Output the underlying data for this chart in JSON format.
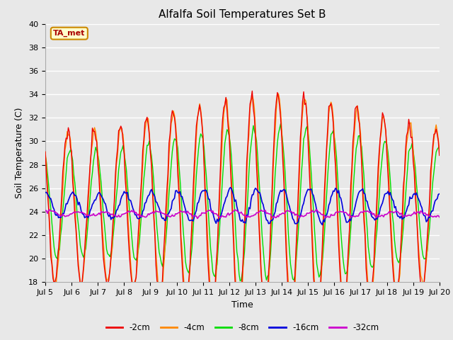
{
  "title": "Alfalfa Soil Temperatures Set B",
  "xlabel": "Time",
  "ylabel": "Soil Temperature (C)",
  "ylim": [
    18,
    40
  ],
  "xlim_days": [
    5,
    20
  ],
  "annotation": "TA_met",
  "line_colors": {
    "-2cm": "#ee0000",
    "-4cm": "#ff8800",
    "-8cm": "#00dd00",
    "-16cm": "#0000dd",
    "-32cm": "#cc00cc"
  },
  "legend_labels": [
    "-2cm",
    "-4cm",
    "-8cm",
    "-16cm",
    "-32cm"
  ],
  "xtick_labels": [
    "Jul 5",
    "Jul 6",
    "Jul 7",
    "Jul 8",
    "Jul 9",
    "Jul 10",
    "Jul 11",
    "Jul 12",
    "Jul 13",
    "Jul 14",
    "Jul 15",
    "Jul 16",
    "Jul 17",
    "Jul 18",
    "Jul 19",
    "Jul 20"
  ],
  "xtick_positions": [
    5,
    6,
    7,
    8,
    9,
    10,
    11,
    12,
    13,
    14,
    15,
    16,
    17,
    18,
    19,
    20
  ],
  "background_color": "#e8e8e8",
  "plot_bg_color": "#e8e8e8",
  "grid_color": "#ffffff",
  "title_fontsize": 11,
  "label_fontsize": 9,
  "tick_fontsize": 8,
  "figsize": [
    6.4,
    4.8
  ],
  "dpi": 100
}
